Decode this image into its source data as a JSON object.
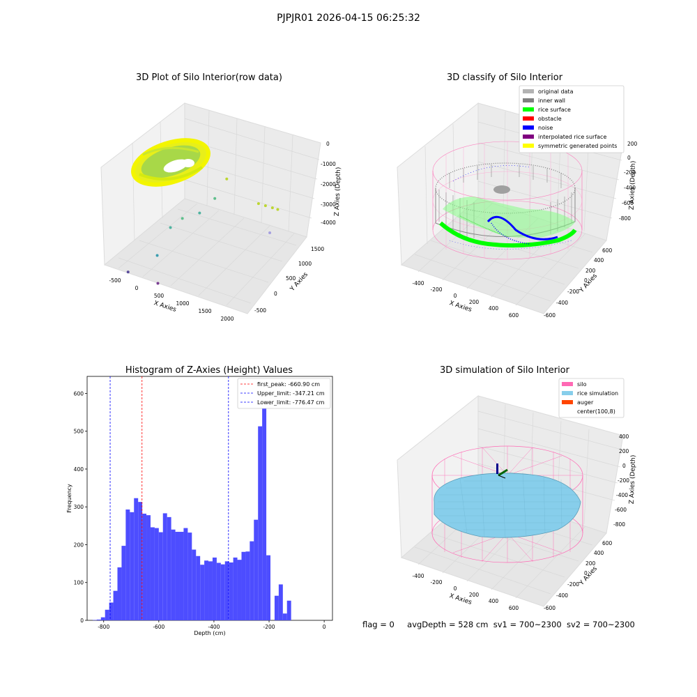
{
  "figure": {
    "title": "PJPJR01 2026-04-15 06:25:32",
    "footer": {
      "flag": "flag = 0",
      "avg_depth": "avgDepth = 528 cm",
      "sv1": "sv1 = 700~2300",
      "sv2": "sv2 = 700~2300"
    }
  },
  "chart_data": [
    {
      "type": "scatter",
      "title": "3D Plot of Silo Interior(row data)",
      "xlabel": "X Axies",
      "ylabel": "Y Axies",
      "zlabel": "Z Axies (Depth)",
      "x_ticks": [
        "-500",
        "0",
        "500",
        "1000",
        "1500",
        "2000"
      ],
      "y_ticks": [
        "-500",
        "0",
        "500",
        "1000",
        "1500"
      ],
      "z_ticks": [
        "0",
        "-1000",
        "-2000",
        "-3000",
        "-4000"
      ],
      "colors": [
        "#9acd32",
        "#ffff00",
        "#3cb371",
        "#2e8b57",
        "#6a3d9a",
        "#9c9ce0"
      ],
      "outliers": [
        {
          "x": 1400,
          "y": 900,
          "z": -1700,
          "color": "#bcd630"
        },
        {
          "x": 1500,
          "y": 950,
          "z": -1800,
          "color": "#bcd630"
        },
        {
          "x": 1600,
          "y": 1000,
          "z": -1900,
          "color": "#bcd630"
        },
        {
          "x": 1700,
          "y": 1000,
          "z": -1900,
          "color": "#bcd630"
        },
        {
          "x": 800,
          "y": 900,
          "z": -1000,
          "color": "#bcd630"
        },
        {
          "x": 700,
          "y": 700,
          "z": -1700,
          "color": "#5fbf8c"
        },
        {
          "x": 400,
          "y": 200,
          "z": -2100,
          "color": "#5fbf8c"
        },
        {
          "x": 300,
          "y": 0,
          "z": -2300,
          "color": "#4fb3a0"
        },
        {
          "x": 600,
          "y": 400,
          "z": -2000,
          "color": "#4fb3a0"
        },
        {
          "x": 300,
          "y": -400,
          "z": -3000,
          "color": "#3a9db0"
        },
        {
          "x": 0,
          "y": -800,
          "z": -3400,
          "color": "#5a4c9c"
        },
        {
          "x": 500,
          "y": -700,
          "z": -3700,
          "color": "#7a3d92"
        },
        {
          "x": 1800,
          "y": 600,
          "z": -2300,
          "color": "#a6a0e0"
        }
      ]
    },
    {
      "type": "scatter",
      "title": "3D classify of Silo Interior",
      "xlabel": "X Axies",
      "ylabel": "Y Axies",
      "zlabel": "Z Axies (Depth)",
      "x_ticks": [
        "-400",
        "-200",
        "0",
        "200",
        "400",
        "600"
      ],
      "y_ticks": [
        "-600",
        "-400",
        "-200",
        "0",
        "200",
        "400",
        "600"
      ],
      "z_ticks": [
        "200",
        "0",
        "-200",
        "-400",
        "-600",
        "-800"
      ],
      "legend_position": "top-right",
      "legend": [
        {
          "label": "original data",
          "color": "#b3b3b3"
        },
        {
          "label": "inner wall",
          "color": "#808080"
        },
        {
          "label": "rice surface",
          "color": "#00ff00"
        },
        {
          "label": "obstacle",
          "color": "#ff0000"
        },
        {
          "label": "noise",
          "color": "#0000ff"
        },
        {
          "label": "interpolated rice surface",
          "color": "#800080"
        },
        {
          "label": "symmetric generated points",
          "color": "#ffff00"
        }
      ]
    },
    {
      "type": "bar",
      "title": "Histogram of Z-Axies (Height) Values",
      "xlabel": "Depth (cm)",
      "ylabel": "Frequency",
      "xlim": [
        -860,
        30
      ],
      "ylim": [
        0,
        645
      ],
      "x_ticks": [
        -800,
        -600,
        -400,
        -200,
        0
      ],
      "y_ticks": [
        0,
        100,
        200,
        300,
        400,
        500,
        600
      ],
      "bar_color": "#4d4dff",
      "bin_start": -840,
      "bin_width": 15,
      "values": [
        1,
        2,
        8,
        28,
        47,
        78,
        140,
        197,
        293,
        286,
        323,
        313,
        282,
        278,
        246,
        244,
        233,
        283,
        273,
        240,
        234,
        234,
        244,
        232,
        187,
        170,
        147,
        158,
        156,
        166,
        152,
        148,
        156,
        153,
        166,
        160,
        181,
        182,
        209,
        266,
        513,
        611,
        172,
        0,
        65,
        95,
        18,
        52
      ],
      "lines": [
        {
          "label": "first_peak: -660.90 cm",
          "x": -660.9,
          "color": "#ff0000"
        },
        {
          "label": "Upper_limit: -347.21 cm",
          "x": -347.21,
          "color": "#0000ff"
        },
        {
          "label": "Lower_limit: -776.47 cm",
          "x": -776.47,
          "color": "#0000ff"
        }
      ],
      "legend_position": "top-right"
    },
    {
      "type": "area",
      "title": "3D simulation of Silo Interior",
      "xlabel": "X Axies",
      "ylabel": "Y Axies",
      "zlabel": "Z Axies (Depth)",
      "x_ticks": [
        "-400",
        "-200",
        "0",
        "200",
        "400",
        "600"
      ],
      "y_ticks": [
        "-600",
        "-400",
        "-200",
        "0",
        "200",
        "400",
        "600"
      ],
      "z_ticks": [
        "400",
        "200",
        "0",
        "-200",
        "-400",
        "-600",
        "-800"
      ],
      "legend_position": "top-right",
      "legend": [
        {
          "label": "silo",
          "color": "#ff69b4"
        },
        {
          "label": "rice simulation",
          "color": "#87ceeb"
        },
        {
          "label": "auger",
          "color": "#ff4500"
        },
        {
          "label": "center(100,8)",
          "color": "#ffffff"
        }
      ]
    }
  ]
}
